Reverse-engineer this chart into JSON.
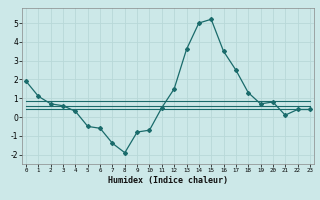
{
  "xlabel": "Humidex (Indice chaleur)",
  "bg_color": "#cce8e8",
  "grid_color": "#b8d8d8",
  "line_color": "#1a6b6b",
  "x_main": [
    0,
    1,
    2,
    3,
    4,
    5,
    6,
    7,
    8,
    9,
    10,
    11,
    12,
    13,
    14,
    15,
    16,
    17,
    18,
    19,
    20,
    21,
    22,
    23
  ],
  "y_main": [
    1.9,
    1.1,
    0.7,
    0.6,
    0.3,
    -0.5,
    -0.6,
    -1.4,
    -1.9,
    -0.8,
    -0.7,
    0.5,
    1.5,
    3.6,
    5.0,
    5.2,
    3.5,
    2.5,
    1.3,
    0.7,
    0.8,
    0.1,
    0.4,
    0.4
  ],
  "flat_lines": [
    {
      "x": [
        0,
        23
      ],
      "y": [
        0.85,
        0.85
      ]
    },
    {
      "x": [
        0,
        23
      ],
      "y": [
        0.6,
        0.6
      ]
    },
    {
      "x": [
        0,
        23
      ],
      "y": [
        0.45,
        0.45
      ]
    }
  ],
  "xlim": [
    -0.3,
    23.3
  ],
  "ylim": [
    -2.5,
    5.8
  ],
  "yticks": [
    -2,
    -1,
    0,
    1,
    2,
    3,
    4,
    5
  ],
  "xticks": [
    0,
    1,
    2,
    3,
    4,
    5,
    6,
    7,
    8,
    9,
    10,
    11,
    12,
    13,
    14,
    15,
    16,
    17,
    18,
    19,
    20,
    21,
    22,
    23
  ],
  "xlabel_fontsize": 6,
  "xlabel_fontweight": "bold",
  "tick_fontsize_x": 4.2,
  "tick_fontsize_y": 5.5
}
